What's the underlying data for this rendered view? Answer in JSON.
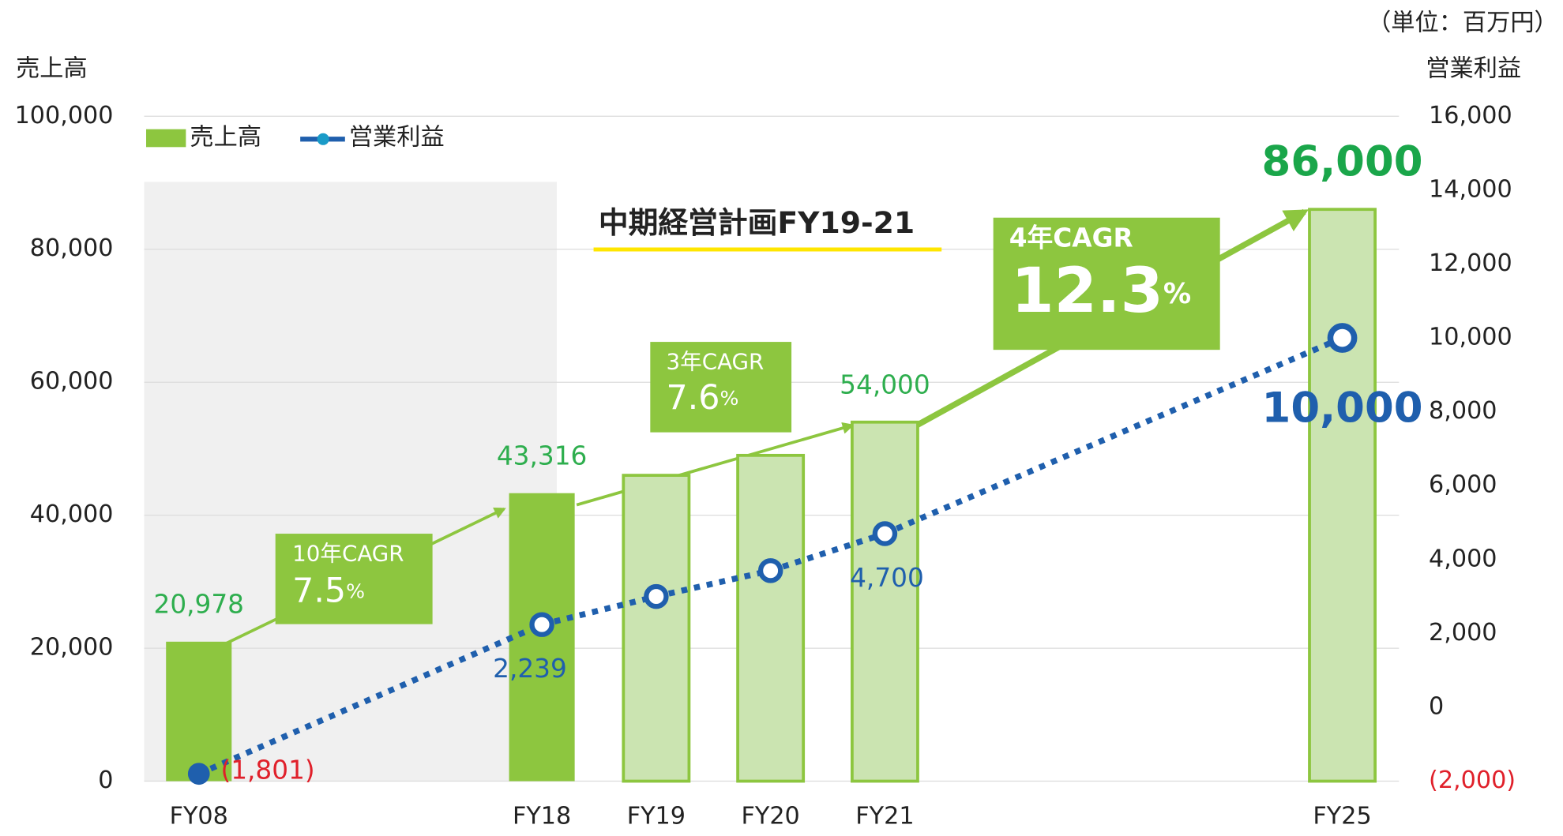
{
  "chart_data": {
    "type": "bar",
    "unit_note": "（単位：百万円）",
    "y_label": "売上高",
    "y2_label": "営業利益",
    "annotation": "中期経営計画FY19-21",
    "cagr": [
      {
        "label": "10年CAGR",
        "value": "7.5",
        "unit": "%"
      },
      {
        "label": "3年CAGR",
        "value": "7.6",
        "unit": "%"
      },
      {
        "label": "4年CAGR",
        "value": "12.3",
        "unit": "%"
      }
    ],
    "categories": [
      "FY08",
      null,
      null,
      "FY18",
      "FY19",
      "FY20",
      "FY21",
      null,
      null,
      null,
      "FY25"
    ],
    "series": [
      {
        "name": "売上高",
        "type": "bar",
        "color": "#8dc63f",
        "light_color": "#cbe4b1",
        "bar_style": [
          "solid",
          null,
          null,
          "solid",
          "outline",
          "outline",
          "outline",
          null,
          null,
          null,
          "outline"
        ],
        "values": [
          20978,
          null,
          null,
          43316,
          46000,
          49000,
          54000,
          null,
          null,
          null,
          86000
        ],
        "value_labels": [
          "20,978",
          null,
          null,
          "43,316",
          null,
          null,
          "54,000",
          null,
          null,
          null,
          "86,000"
        ]
      },
      {
        "name": "営業利益",
        "type": "line",
        "axis": "y2",
        "color": "#1f5fad",
        "line_style": [
          "solid",
          null,
          null,
          "dotted",
          "dotted",
          "dotted",
          "dotted",
          null,
          null,
          null,
          "dotted"
        ],
        "values": [
          -1801,
          null,
          null,
          2239,
          3000,
          3700,
          4700,
          null,
          null,
          null,
          10000
        ],
        "value_labels": [
          "(1,801)",
          null,
          null,
          "2,239",
          null,
          null,
          "4,700",
          null,
          null,
          null,
          "10,000"
        ]
      }
    ],
    "ylim": [
      0,
      100000
    ],
    "yticks": [
      0,
      {
        "value": 20000,
        "label": "20,000"
      },
      {
        "value": 40000,
        "label": "40,000"
      },
      {
        "value": 60000,
        "label": "60,000"
      },
      {
        "value": 80000,
        "label": "80,000"
      },
      {
        "value": 100000,
        "label": "100,000"
      }
    ],
    "y2lim": [
      -2000,
      16000
    ],
    "y2ticks": [
      {
        "value": -2000,
        "label": "(2,000)"
      },
      0,
      {
        "value": 2000,
        "label": "2,000"
      },
      {
        "value": 4000,
        "label": "4,000"
      },
      {
        "value": 6000,
        "label": "6,000"
      },
      {
        "value": 8000,
        "label": "8,000"
      },
      {
        "value": 10000,
        "label": "10,000"
      },
      {
        "value": 12000,
        "label": "12,000"
      },
      {
        "value": 14000,
        "label": "14,000"
      },
      {
        "value": 16000,
        "label": "16,000"
      }
    ],
    "grid": true
  }
}
